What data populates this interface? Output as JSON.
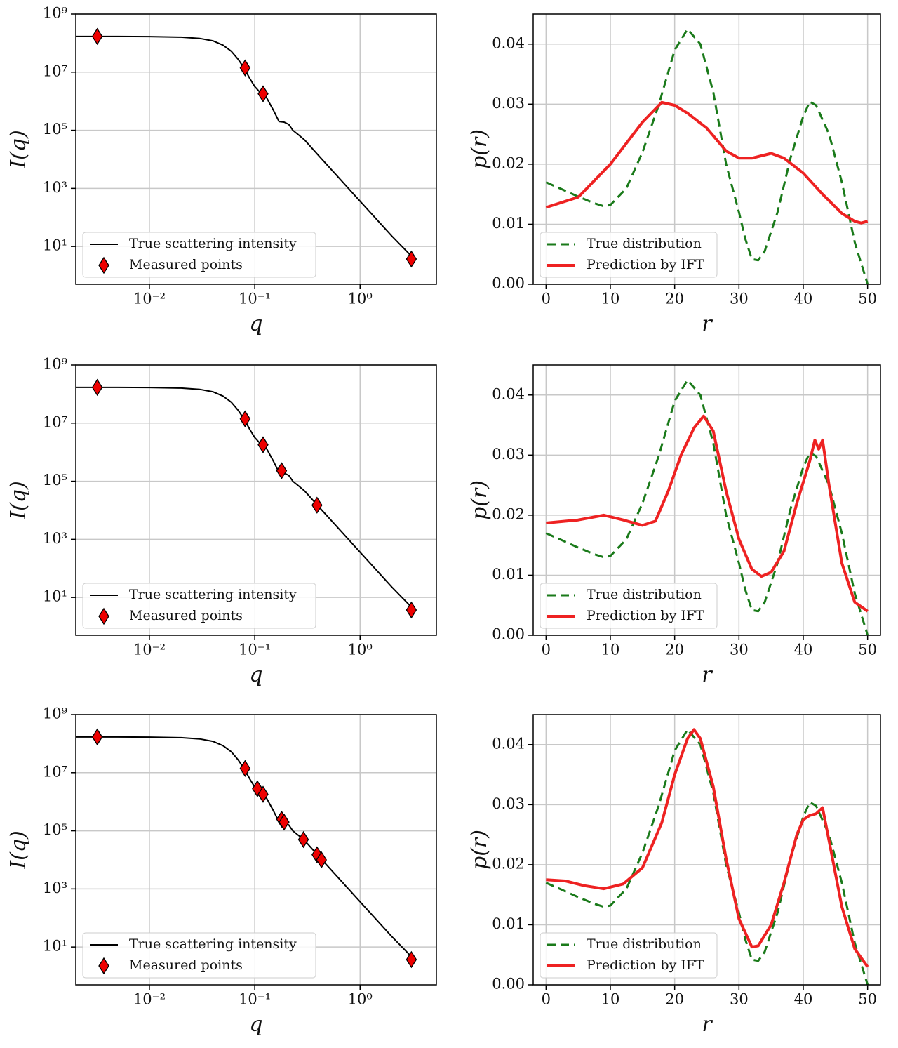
{
  "chart_data": [
    {
      "type": "line",
      "log_x": true,
      "log_y": true,
      "xlabel": "q",
      "ylabel": "I(q)",
      "xlim": [
        0.002,
        5.3
      ],
      "ylim": [
        0.5,
        1000000000
      ],
      "xticks": [
        {
          "value": 0.01,
          "label": "10⁻²"
        },
        {
          "value": 0.1,
          "label": "10⁻¹"
        },
        {
          "value": 1,
          "label": "10⁰"
        }
      ],
      "yticks": [
        {
          "value": 10,
          "label": "10¹"
        },
        {
          "value": 1000,
          "label": "10³"
        },
        {
          "value": 100000,
          "label": "10⁵"
        },
        {
          "value": 10000000,
          "label": "10⁷"
        },
        {
          "value": 1000000000,
          "label": "10⁹"
        }
      ],
      "grid": true,
      "legend": "lower left",
      "series": [
        {
          "name": "True scattering intensity",
          "type": "line",
          "color": "#000000",
          "style": "solid",
          "width": 2,
          "x": [
            0.002,
            0.005,
            0.01,
            0.02,
            0.03,
            0.04,
            0.05,
            0.06,
            0.07,
            0.08,
            0.09,
            0.1,
            0.11,
            0.12,
            0.13,
            0.15,
            0.17,
            0.19,
            0.21,
            0.23,
            0.26,
            0.3,
            0.4,
            0.6,
            1,
            2,
            3.2
          ],
          "values": [
            170000000,
            170000000,
            168000000,
            160000000,
            145000000,
            120000000,
            85000000,
            52000000,
            27000000,
            13000000,
            6000000,
            3200000,
            2200000,
            1800000,
            1300000,
            500000,
            200000,
            190000,
            160000,
            100000,
            70000,
            45000,
            14000,
            2800,
            360,
            23,
            4
          ]
        },
        {
          "name": "Measured points",
          "type": "scatter",
          "color": "#ee0000",
          "marker": "diamond",
          "x": [
            0.0032,
            0.081,
            0.12,
            3.07
          ],
          "values": [
            170000000,
            14000000,
            1800000,
            3.7
          ]
        }
      ]
    },
    {
      "type": "line",
      "log_x": false,
      "log_y": false,
      "xlabel": "r",
      "ylabel": "p(r)",
      "xlim": [
        -2,
        52
      ],
      "ylim": [
        0,
        0.045
      ],
      "xticks": [
        0,
        10,
        20,
        30,
        40,
        50
      ],
      "yticks": [
        {
          "value": 0,
          "label": "0.00"
        },
        0.01,
        0.02,
        0.03,
        0.04
      ],
      "grid": true,
      "legend": "lower left",
      "series": [
        {
          "name": "True distribution",
          "type": "line",
          "color": "#1a7a1a",
          "style": "dashed",
          "width": 3,
          "x": [
            0,
            2.5,
            5,
            7.5,
            9,
            10,
            12.5,
            15,
            17.5,
            20,
            22,
            24,
            26,
            28,
            30,
            31,
            32,
            33,
            34,
            36,
            38,
            40,
            41,
            42,
            44,
            46,
            48,
            50
          ],
          "values": [
            0.017,
            0.0158,
            0.0146,
            0.0135,
            0.013,
            0.0132,
            0.016,
            0.022,
            0.0298,
            0.039,
            0.0425,
            0.04,
            0.032,
            0.02,
            0.012,
            0.0075,
            0.0042,
            0.004,
            0.0055,
            0.012,
            0.021,
            0.028,
            0.0304,
            0.0298,
            0.025,
            0.017,
            0.007,
            0
          ]
        },
        {
          "name": "Prediction by IFT",
          "type": "line",
          "color": "#ee2222",
          "style": "solid",
          "width": 4,
          "x": [
            0,
            5,
            10,
            15,
            18,
            20,
            22,
            25,
            28,
            30,
            32,
            35,
            37,
            40,
            43,
            46,
            48,
            49,
            50
          ],
          "values": [
            0.0128,
            0.0145,
            0.02,
            0.027,
            0.0303,
            0.0298,
            0.0285,
            0.026,
            0.0222,
            0.021,
            0.021,
            0.0218,
            0.021,
            0.0185,
            0.015,
            0.0118,
            0.0105,
            0.0102,
            0.0105
          ]
        }
      ]
    },
    {
      "type": "line",
      "log_x": true,
      "log_y": true,
      "xlabel": "q",
      "ylabel": "I(q)",
      "xlim": [
        0.002,
        5.3
      ],
      "ylim": [
        0.5,
        1000000000
      ],
      "xticks": [
        {
          "value": 0.01,
          "label": "10⁻²"
        },
        {
          "value": 0.1,
          "label": "10⁻¹"
        },
        {
          "value": 1,
          "label": "10⁰"
        }
      ],
      "yticks": [
        {
          "value": 10,
          "label": "10¹"
        },
        {
          "value": 1000,
          "label": "10³"
        },
        {
          "value": 100000,
          "label": "10⁵"
        },
        {
          "value": 10000000,
          "label": "10⁷"
        },
        {
          "value": 1000000000,
          "label": "10⁹"
        }
      ],
      "grid": true,
      "legend": "lower left",
      "series": [
        {
          "name": "True scattering intensity",
          "type": "line",
          "color": "#000000",
          "style": "solid",
          "width": 2,
          "x": [
            0.002,
            0.005,
            0.01,
            0.02,
            0.03,
            0.04,
            0.05,
            0.06,
            0.07,
            0.08,
            0.09,
            0.1,
            0.11,
            0.12,
            0.13,
            0.15,
            0.17,
            0.19,
            0.21,
            0.23,
            0.26,
            0.3,
            0.4,
            0.6,
            1,
            2,
            3.2
          ],
          "values": [
            170000000,
            170000000,
            168000000,
            160000000,
            145000000,
            120000000,
            85000000,
            52000000,
            27000000,
            13000000,
            6000000,
            3200000,
            2200000,
            1800000,
            1300000,
            500000,
            200000,
            190000,
            160000,
            100000,
            70000,
            45000,
            14000,
            2800,
            360,
            23,
            4
          ]
        },
        {
          "name": "Measured points",
          "type": "scatter",
          "color": "#ee0000",
          "marker": "diamond",
          "x": [
            0.0032,
            0.081,
            0.12,
            0.18,
            0.39,
            3.07
          ],
          "values": [
            170000000,
            14000000,
            1800000,
            230000,
            15000,
            3.7
          ]
        }
      ]
    },
    {
      "type": "line",
      "log_x": false,
      "log_y": false,
      "xlabel": "r",
      "ylabel": "p(r)",
      "xlim": [
        -2,
        52
      ],
      "ylim": [
        0,
        0.045
      ],
      "xticks": [
        0,
        10,
        20,
        30,
        40,
        50
      ],
      "yticks": [
        {
          "value": 0,
          "label": "0.00"
        },
        0.01,
        0.02,
        0.03,
        0.04
      ],
      "grid": true,
      "legend": "lower left",
      "series": [
        {
          "name": "True distribution",
          "type": "line",
          "color": "#1a7a1a",
          "style": "dashed",
          "width": 3,
          "x": [
            0,
            2.5,
            5,
            7.5,
            9,
            10,
            12.5,
            15,
            17.5,
            20,
            22,
            24,
            26,
            28,
            30,
            31,
            32,
            33,
            34,
            36,
            38,
            40,
            41,
            42,
            44,
            46,
            48,
            50
          ],
          "values": [
            0.017,
            0.0158,
            0.0146,
            0.0135,
            0.013,
            0.0132,
            0.016,
            0.022,
            0.0298,
            0.039,
            0.0425,
            0.04,
            0.032,
            0.02,
            0.012,
            0.0075,
            0.0042,
            0.004,
            0.0055,
            0.012,
            0.021,
            0.028,
            0.0304,
            0.0298,
            0.025,
            0.017,
            0.007,
            0
          ]
        },
        {
          "name": "Prediction by IFT",
          "type": "line",
          "color": "#ee2222",
          "style": "solid",
          "width": 4,
          "x": [
            0,
            5,
            9,
            12,
            15,
            17,
            19,
            21,
            23,
            24.5,
            26,
            28,
            30,
            32,
            33.5,
            35,
            37,
            39,
            41,
            41.8,
            42.4,
            43,
            44,
            46,
            48,
            50
          ],
          "values": [
            0.0187,
            0.0192,
            0.02,
            0.0192,
            0.0183,
            0.019,
            0.024,
            0.03,
            0.0345,
            0.0365,
            0.034,
            0.024,
            0.016,
            0.011,
            0.0098,
            0.0105,
            0.014,
            0.022,
            0.029,
            0.0325,
            0.031,
            0.0325,
            0.025,
            0.012,
            0.0055,
            0.004
          ]
        }
      ]
    },
    {
      "type": "line",
      "log_x": true,
      "log_y": true,
      "xlabel": "q",
      "ylabel": "I(q)",
      "xlim": [
        0.002,
        5.3
      ],
      "ylim": [
        0.5,
        1000000000
      ],
      "xticks": [
        {
          "value": 0.01,
          "label": "10⁻²"
        },
        {
          "value": 0.1,
          "label": "10⁻¹"
        },
        {
          "value": 1,
          "label": "10⁰"
        }
      ],
      "yticks": [
        {
          "value": 10,
          "label": "10¹"
        },
        {
          "value": 1000,
          "label": "10³"
        },
        {
          "value": 100000,
          "label": "10⁵"
        },
        {
          "value": 10000000,
          "label": "10⁷"
        },
        {
          "value": 1000000000,
          "label": "10⁹"
        }
      ],
      "grid": true,
      "legend": "lower left",
      "series": [
        {
          "name": "True scattering intensity",
          "type": "line",
          "color": "#000000",
          "style": "solid",
          "width": 2,
          "x": [
            0.002,
            0.005,
            0.01,
            0.02,
            0.03,
            0.04,
            0.05,
            0.06,
            0.07,
            0.08,
            0.09,
            0.1,
            0.11,
            0.12,
            0.13,
            0.15,
            0.17,
            0.19,
            0.21,
            0.23,
            0.26,
            0.3,
            0.4,
            0.6,
            1,
            2,
            3.2
          ],
          "values": [
            170000000,
            170000000,
            168000000,
            160000000,
            145000000,
            120000000,
            85000000,
            52000000,
            27000000,
            13000000,
            6000000,
            3200000,
            2200000,
            1800000,
            1300000,
            500000,
            200000,
            190000,
            160000,
            100000,
            70000,
            45000,
            14000,
            2800,
            360,
            23,
            4
          ]
        },
        {
          "name": "Measured points",
          "type": "scatter",
          "color": "#ee0000",
          "marker": "diamond",
          "x": [
            0.0032,
            0.081,
            0.106,
            0.12,
            0.18,
            0.19,
            0.29,
            0.39,
            0.43,
            3.07
          ],
          "values": [
            170000000,
            14000000,
            2800000,
            1800000,
            250000,
            200000,
            50000,
            15000,
            10000,
            3.7
          ]
        }
      ]
    },
    {
      "type": "line",
      "log_x": false,
      "log_y": false,
      "xlabel": "r",
      "ylabel": "p(r)",
      "xlim": [
        -2,
        52
      ],
      "ylim": [
        0,
        0.045
      ],
      "xticks": [
        0,
        10,
        20,
        30,
        40,
        50
      ],
      "yticks": [
        {
          "value": 0,
          "label": "0.00"
        },
        0.01,
        0.02,
        0.03,
        0.04
      ],
      "grid": true,
      "legend": "lower left",
      "series": [
        {
          "name": "True distribution",
          "type": "line",
          "color": "#1a7a1a",
          "style": "dashed",
          "width": 3,
          "x": [
            0,
            2.5,
            5,
            7.5,
            9,
            10,
            12.5,
            15,
            17.5,
            20,
            22,
            24,
            26,
            28,
            30,
            31,
            32,
            33,
            34,
            36,
            38,
            40,
            41,
            42,
            44,
            46,
            48,
            50
          ],
          "values": [
            0.017,
            0.0158,
            0.0146,
            0.0135,
            0.013,
            0.0132,
            0.016,
            0.022,
            0.0298,
            0.039,
            0.0425,
            0.04,
            0.032,
            0.02,
            0.012,
            0.0075,
            0.0042,
            0.004,
            0.0055,
            0.012,
            0.021,
            0.028,
            0.0304,
            0.0298,
            0.025,
            0.017,
            0.007,
            0
          ]
        },
        {
          "name": "Prediction by IFT",
          "type": "line",
          "color": "#ee2222",
          "style": "solid",
          "width": 4,
          "x": [
            0,
            3,
            6,
            9,
            12,
            15,
            18,
            20,
            22,
            23,
            24,
            26,
            28,
            30,
            32,
            33,
            35,
            37,
            39,
            40,
            41,
            42,
            43,
            44,
            46,
            48,
            50
          ],
          "values": [
            0.0175,
            0.0173,
            0.0165,
            0.016,
            0.0168,
            0.0195,
            0.027,
            0.035,
            0.041,
            0.0425,
            0.041,
            0.033,
            0.021,
            0.011,
            0.0063,
            0.0065,
            0.01,
            0.017,
            0.025,
            0.0275,
            0.0282,
            0.0285,
            0.0295,
            0.024,
            0.013,
            0.006,
            0.003
          ]
        }
      ]
    }
  ]
}
